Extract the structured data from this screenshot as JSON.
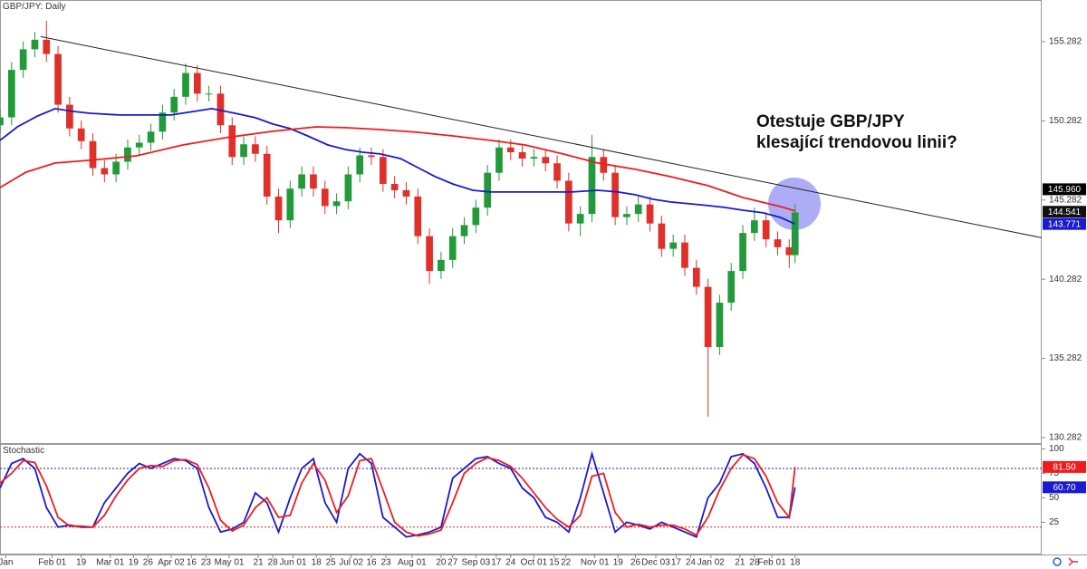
{
  "chart_data": [
    {
      "type": "candlestick",
      "title": "GBP/JPY: Daily",
      "annotation": [
        "Otestuje GBP/JPY",
        "klesající trendovou linii?"
      ],
      "x": [
        0,
        4,
        8,
        12,
        16,
        20,
        24,
        28,
        32,
        36,
        40,
        44,
        48,
        52,
        56,
        60,
        64,
        68,
        72,
        76,
        80,
        84,
        88,
        92,
        96,
        100,
        104,
        108,
        112,
        116,
        120,
        124,
        128,
        132,
        136,
        140,
        144,
        148,
        152,
        156,
        160,
        164,
        168,
        172,
        176,
        180,
        184,
        188,
        192,
        196,
        200,
        204,
        208,
        212,
        216,
        220,
        224,
        228,
        232,
        236,
        240,
        244,
        248,
        252,
        256,
        260,
        264,
        268,
        272,
        274
      ],
      "open": [
        150.0,
        150.5,
        153.5,
        154.8,
        155.4,
        154.5,
        151.3,
        149.8,
        149.0,
        147.3,
        146.9,
        147.7,
        148.6,
        148.9,
        149.6,
        150.8,
        151.8,
        153.3,
        152.0,
        152.0,
        150.0,
        148.0,
        148.8,
        148.2,
        145.5,
        144.0,
        146.0,
        146.9,
        146.0,
        144.9,
        145.2,
        146.9,
        148.1,
        148.0,
        146.3,
        145.9,
        145.5,
        143.0,
        140.8,
        141.5,
        143.0,
        143.7,
        144.8,
        147.0,
        148.6,
        148.3,
        147.9,
        148.0,
        147.6,
        146.5,
        143.8,
        144.4,
        148.0,
        147.0,
        144.2,
        144.4,
        145.0,
        143.8,
        142.2,
        142.6,
        141.0,
        139.8,
        136.0,
        138.8,
        140.8,
        143.2,
        144.0,
        142.8,
        142.3,
        141.8
      ],
      "high": [
        151.0,
        154.0,
        155.3,
        155.9,
        156.6,
        155.0,
        151.8,
        150.3,
        149.5,
        147.8,
        148.2,
        149.1,
        149.4,
        150.1,
        151.3,
        152.3,
        153.9,
        153.8,
        152.5,
        152.5,
        150.5,
        149.3,
        149.3,
        148.7,
        146.0,
        146.5,
        147.4,
        147.4,
        146.5,
        145.7,
        147.4,
        148.6,
        148.6,
        148.5,
        146.8,
        146.4,
        146.0,
        143.5,
        142.0,
        143.5,
        144.2,
        145.3,
        147.5,
        149.1,
        149.1,
        148.8,
        148.5,
        148.5,
        148.1,
        147.0,
        144.9,
        149.4,
        148.5,
        147.5,
        144.9,
        145.5,
        145.5,
        144.3,
        143.1,
        143.1,
        141.5,
        140.3,
        139.3,
        141.3,
        143.7,
        144.8,
        144.5,
        143.3,
        142.8,
        145.0
      ],
      "low": [
        149.5,
        150.0,
        153.0,
        154.3,
        154.0,
        150.8,
        149.3,
        148.5,
        146.8,
        146.4,
        146.4,
        147.2,
        148.1,
        148.4,
        149.1,
        150.3,
        151.3,
        151.5,
        151.5,
        149.5,
        147.5,
        147.5,
        147.7,
        145.0,
        143.2,
        143.5,
        145.5,
        145.5,
        144.4,
        144.4,
        144.7,
        146.4,
        147.5,
        145.8,
        145.4,
        145.0,
        142.5,
        140.0,
        140.3,
        141.0,
        142.5,
        143.2,
        144.3,
        146.5,
        147.8,
        147.4,
        147.4,
        147.1,
        146.0,
        143.3,
        143.0,
        143.9,
        146.5,
        143.7,
        143.7,
        143.9,
        143.3,
        141.7,
        141.7,
        140.5,
        139.3,
        131.6,
        135.5,
        138.3,
        140.3,
        142.7,
        142.3,
        141.8,
        141.0,
        141.3
      ],
      "close": [
        150.5,
        153.5,
        154.8,
        155.4,
        154.5,
        151.3,
        149.8,
        149.0,
        147.3,
        146.9,
        147.7,
        148.6,
        148.9,
        149.6,
        150.8,
        151.8,
        153.3,
        152.0,
        152.0,
        150.0,
        148.0,
        148.8,
        148.2,
        145.5,
        144.0,
        146.0,
        146.9,
        146.0,
        144.9,
        145.2,
        146.9,
        148.1,
        148.0,
        146.3,
        145.9,
        145.5,
        143.0,
        140.8,
        141.5,
        143.0,
        143.7,
        144.8,
        147.0,
        148.6,
        148.3,
        147.9,
        148.0,
        147.6,
        146.5,
        143.8,
        144.4,
        148.0,
        147.0,
        144.2,
        144.4,
        145.0,
        143.8,
        142.2,
        142.6,
        141.0,
        139.8,
        136.0,
        138.8,
        140.8,
        143.2,
        144.0,
        142.8,
        142.3,
        141.8,
        144.5
      ],
      "up_color": "#229a3a",
      "down_color": "#e0302a",
      "series": [
        {
          "color": "#1a1ad0",
          "x": [
            0,
            6,
            13,
            19,
            25,
            31,
            41,
            50,
            59,
            67,
            73,
            81,
            88,
            94,
            100,
            106,
            113,
            119,
            125,
            131,
            138,
            144,
            150,
            156,
            163,
            169,
            175,
            188,
            197,
            206,
            213,
            219,
            225,
            231,
            238,
            244,
            250,
            256,
            263,
            269,
            274
          ],
          "values": [
            149.05,
            149.9,
            150.59,
            151.05,
            150.88,
            150.76,
            150.65,
            150.65,
            150.65,
            150.88,
            151.05,
            150.76,
            150.48,
            150.08,
            149.79,
            149.33,
            148.76,
            148.47,
            148.3,
            148.19,
            147.9,
            147.33,
            146.76,
            146.3,
            145.9,
            145.79,
            145.79,
            145.79,
            145.79,
            145.9,
            145.79,
            145.61,
            145.33,
            145.16,
            145.04,
            144.93,
            144.81,
            144.64,
            144.47,
            144.18,
            143.77
          ]
        },
        {
          "color": "#f01c1c",
          "x": [
            0,
            9,
            19,
            31,
            47,
            63,
            78,
            94,
            109,
            119,
            131,
            144,
            156,
            169,
            181,
            194,
            206,
            219,
            231,
            244,
            256,
            269,
            274
          ],
          "values": [
            146.07,
            147.04,
            147.62,
            147.79,
            148.07,
            148.76,
            149.22,
            149.62,
            149.9,
            149.85,
            149.73,
            149.56,
            149.33,
            149.05,
            148.76,
            148.19,
            147.62,
            147.22,
            146.76,
            146.19,
            145.44,
            144.87,
            144.6
          ]
        }
      ],
      "trendline": {
        "x": [
          14,
          359
        ],
        "y": [
          155.6,
          142.9
        ]
      },
      "xlim": [
        0,
        359
      ],
      "ylim": [
        129.88,
        157.91
      ],
      "yticks": [
        155.282,
        150.282,
        145.282,
        140.282,
        135.282,
        130.282
      ],
      "price_labels": [
        {
          "value": 145.96,
          "label": "145.960",
          "color": "#000000"
        },
        {
          "value": 144.541,
          "label": "144.541",
          "color": "#111111"
        },
        {
          "value": 143.771,
          "label": "143.771",
          "color": "#1a1ad0"
        }
      ]
    },
    {
      "type": "line",
      "title": "Stochastic",
      "x": [
        0,
        4,
        8,
        12,
        16,
        20,
        24,
        28,
        32,
        36,
        40,
        44,
        48,
        52,
        56,
        60,
        64,
        68,
        72,
        76,
        80,
        84,
        88,
        92,
        96,
        100,
        104,
        108,
        112,
        116,
        120,
        124,
        128,
        132,
        136,
        140,
        144,
        148,
        152,
        156,
        160,
        164,
        168,
        172,
        176,
        180,
        184,
        188,
        192,
        196,
        200,
        204,
        208,
        212,
        216,
        220,
        224,
        228,
        232,
        236,
        240,
        244,
        248,
        252,
        256,
        260,
        264,
        268,
        272,
        274
      ],
      "series": [
        {
          "color": "#1a1ad0",
          "values": [
            60,
            85,
            90,
            80,
            40,
            20,
            22,
            20,
            20,
            45,
            60,
            75,
            85,
            80,
            85,
            90,
            88,
            80,
            40,
            15,
            18,
            25,
            55,
            45,
            15,
            50,
            80,
            90,
            45,
            25,
            80,
            95,
            85,
            30,
            20,
            10,
            12,
            15,
            20,
            70,
            80,
            90,
            92,
            85,
            80,
            60,
            50,
            30,
            25,
            15,
            50,
            95,
            55,
            15,
            25,
            22,
            18,
            25,
            20,
            15,
            10,
            50,
            65,
            92,
            95,
            85,
            60,
            30,
            30,
            60.7
          ]
        },
        {
          "color": "#f01c1c",
          "values": [
            65,
            75,
            88,
            86,
            62,
            30,
            21,
            21,
            20,
            32,
            52,
            68,
            80,
            83,
            82,
            88,
            89,
            84,
            60,
            27,
            16,
            22,
            40,
            50,
            30,
            32,
            65,
            85,
            68,
            35,
            52,
            88,
            90,
            58,
            25,
            15,
            11,
            13,
            17,
            45,
            75,
            85,
            91,
            88,
            82,
            70,
            55,
            40,
            28,
            20,
            32,
            72,
            75,
            35,
            20,
            23,
            20,
            22,
            22,
            18,
            12,
            30,
            58,
            80,
            94,
            90,
            72,
            45,
            30,
            81.5
          ]
        }
      ],
      "levels": [
        {
          "value": 80,
          "color": "#1a1ad0"
        },
        {
          "value": 20,
          "color": "#f01c1c"
        }
      ],
      "xlim": [
        0,
        359
      ],
      "ylim": [
        -8,
        105
      ],
      "yticks": [
        100,
        75,
        50,
        25
      ],
      "price_labels": [
        {
          "value": 81.5,
          "label": "81.50",
          "color": "#f01c1c"
        },
        {
          "value": 60.7,
          "label": "60.70",
          "color": "#1a1ad0"
        }
      ],
      "xticks": [
        {
          "value": 2,
          "label": "Jan"
        },
        {
          "value": 18,
          "label": "Feb 01"
        },
        {
          "value": 28,
          "label": "19"
        },
        {
          "value": 38,
          "label": "Mar 01"
        },
        {
          "value": 46,
          "label": "19"
        },
        {
          "value": 51,
          "label": "26"
        },
        {
          "value": 59,
          "label": "Apr 02"
        },
        {
          "value": 66,
          "label": "16"
        },
        {
          "value": 71,
          "label": "23"
        },
        {
          "value": 79,
          "label": "May 01"
        },
        {
          "value": 89,
          "label": "21"
        },
        {
          "value": 94,
          "label": "28"
        },
        {
          "value": 101,
          "label": "Jun 01"
        },
        {
          "value": 109,
          "label": "18"
        },
        {
          "value": 114,
          "label": "25"
        },
        {
          "value": 121,
          "label": "Jul 02"
        },
        {
          "value": 128,
          "label": "16"
        },
        {
          "value": 133,
          "label": "23"
        },
        {
          "value": 142,
          "label": "Aug 01"
        },
        {
          "value": 152,
          "label": "20"
        },
        {
          "value": 156,
          "label": "27"
        },
        {
          "value": 164,
          "label": "Sep 03"
        },
        {
          "value": 171,
          "label": "17"
        },
        {
          "value": 176,
          "label": "24"
        },
        {
          "value": 184,
          "label": "Oct 01"
        },
        {
          "value": 191,
          "label": "15"
        },
        {
          "value": 195,
          "label": "22"
        },
        {
          "value": 205,
          "label": "Nov 01"
        },
        {
          "value": 213,
          "label": "19"
        },
        {
          "value": 219,
          "label": "26"
        },
        {
          "value": 226,
          "label": "Dec 03"
        },
        {
          "value": 233,
          "label": "17"
        },
        {
          "value": 238,
          "label": "24"
        },
        {
          "value": 245,
          "label": "Jan 02"
        },
        {
          "value": 255,
          "label": "21"
        },
        {
          "value": 260,
          "label": "28"
        },
        {
          "value": 266,
          "label": "Feb 01"
        },
        {
          "value": 274,
          "label": "18"
        }
      ]
    }
  ]
}
